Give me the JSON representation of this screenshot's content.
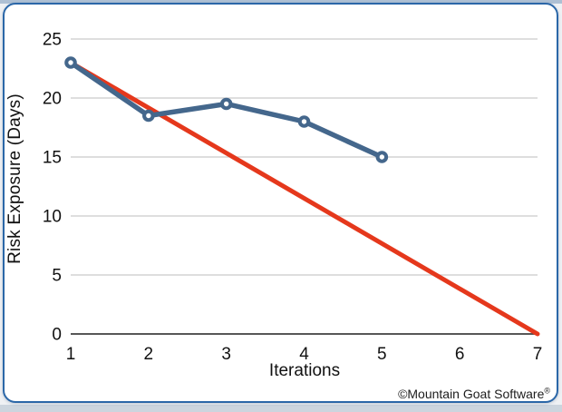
{
  "chart_data": {
    "type": "line",
    "title": "",
    "xlabel": "Iterations",
    "ylabel": "Risk Exposure (Days)",
    "xlim": [
      1,
      7
    ],
    "ylim": [
      0,
      25
    ],
    "x_ticks": [
      1,
      2,
      3,
      4,
      5,
      6,
      7
    ],
    "y_ticks": [
      0,
      5,
      10,
      15,
      20,
      25
    ],
    "grid": "horizontal-only",
    "legend": "none",
    "axis_color": "#3F3F3F",
    "grid_color": "#C9C9C9",
    "tick_label_color": "#111111",
    "tick_font_size": 19,
    "series": [
      {
        "name": "planned-risk-burndown",
        "x": [
          1,
          7
        ],
        "values": [
          23,
          0
        ],
        "color": "#E5381C",
        "stroke_width": 5,
        "markers": false
      },
      {
        "name": "actual-risk-exposure",
        "x": [
          1,
          2,
          3,
          4,
          5
        ],
        "values": [
          23,
          18.5,
          19.5,
          18,
          15
        ],
        "color": "#44678C",
        "stroke_width": 5.5,
        "markers": true,
        "marker_style": "open-circle",
        "marker_fill": "#FFFFFF"
      }
    ]
  },
  "footer": {
    "copyright": "©Mountain Goat Software",
    "registered_mark": "®"
  },
  "frame": {
    "border_color": "#2B67A8",
    "background": "#FFFFFF"
  },
  "page": {
    "top_strip_color": "#AEC0D4",
    "bottom_strip_color": "#CCD5DE",
    "surround_color": "#EFF1F4"
  }
}
